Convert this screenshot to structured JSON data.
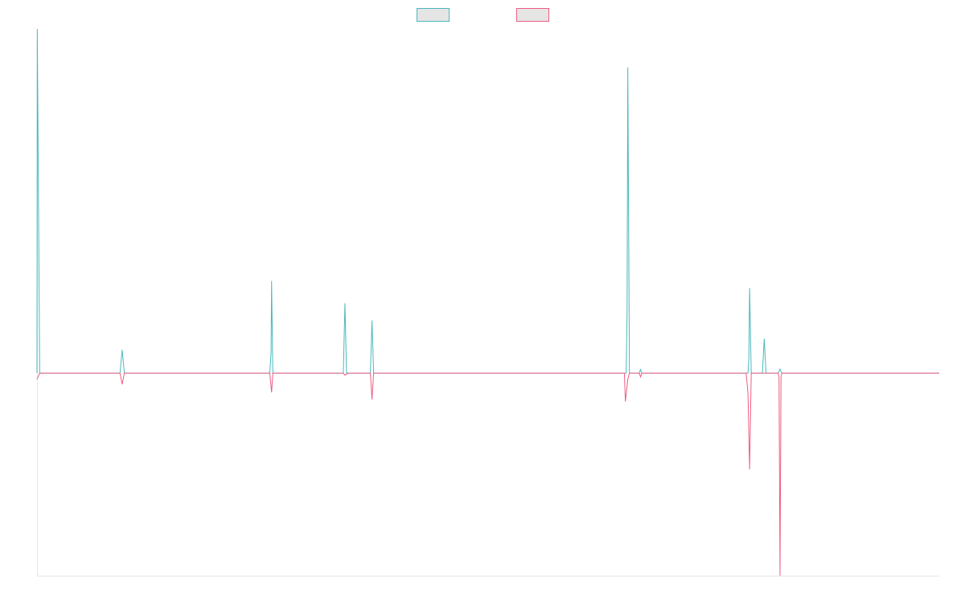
{
  "chart_data": {
    "type": "line",
    "title": "",
    "xlabel": "",
    "ylabel": "",
    "grid": false,
    "legend": {
      "placement": "top-center",
      "entries": [
        {
          "label": "",
          "color": "#4bb8bd",
          "fill": "#e5e5e5"
        },
        {
          "label": "",
          "color": "#ef5d83",
          "fill": "#e5e5e5"
        }
      ]
    },
    "colors": {
      "series_a": "#4bb8bd",
      "series_b": "#ef5d83",
      "axis": "#e6e6e6"
    },
    "xlim": [
      0,
      1
    ],
    "ylim": [
      -1,
      1.7
    ],
    "series": [
      {
        "color": "#4bb8bd",
        "points": [
          [
            0.0,
            0.0
          ],
          [
            0.0003,
            1.7
          ],
          [
            0.003,
            0.0
          ],
          [
            0.092,
            0.0
          ],
          [
            0.0944,
            0.115
          ],
          [
            0.0968,
            0.0
          ],
          [
            0.258,
            0.0
          ],
          [
            0.2594,
            0.1
          ],
          [
            0.26,
            0.455
          ],
          [
            0.2614,
            0.0
          ],
          [
            0.3395,
            0.0
          ],
          [
            0.3413,
            0.345
          ],
          [
            0.3431,
            0.0
          ],
          [
            0.3448,
            0.0
          ],
          [
            0.3695,
            0.0
          ],
          [
            0.3713,
            0.26
          ],
          [
            0.3731,
            0.0
          ],
          [
            0.653,
            0.0
          ],
          [
            0.654,
            0.3
          ],
          [
            0.6548,
            1.51
          ],
          [
            0.6566,
            0.0
          ],
          [
            0.6675,
            0.0
          ],
          [
            0.6689,
            0.018
          ],
          [
            0.6703,
            0.0
          ],
          [
            0.788,
            0.0
          ],
          [
            0.789,
            0.08
          ],
          [
            0.7898,
            0.42
          ],
          [
            0.7916,
            0.0
          ],
          [
            0.804,
            0.0
          ],
          [
            0.806,
            0.17
          ],
          [
            0.808,
            0.0
          ],
          [
            0.8215,
            0.0
          ],
          [
            0.8235,
            0.02
          ],
          [
            0.8255,
            0.0
          ],
          [
            1.0,
            0.0
          ]
        ]
      },
      {
        "color": "#ef5d83",
        "points": [
          [
            0.0,
            -0.03
          ],
          [
            0.003,
            0.0
          ],
          [
            0.092,
            0.0
          ],
          [
            0.0944,
            -0.055
          ],
          [
            0.0968,
            0.0
          ],
          [
            0.258,
            0.0
          ],
          [
            0.26,
            -0.095
          ],
          [
            0.2614,
            0.0
          ],
          [
            0.3395,
            0.0
          ],
          [
            0.3413,
            -0.01
          ],
          [
            0.3448,
            0.0
          ],
          [
            0.3695,
            0.0
          ],
          [
            0.3713,
            -0.13
          ],
          [
            0.3731,
            0.0
          ],
          [
            0.651,
            0.0
          ],
          [
            0.6521,
            -0.14
          ],
          [
            0.6548,
            -0.03
          ],
          [
            0.6566,
            0.0
          ],
          [
            0.6675,
            0.0
          ],
          [
            0.6689,
            -0.018
          ],
          [
            0.6703,
            0.0
          ],
          [
            0.786,
            0.0
          ],
          [
            0.788,
            -0.1
          ],
          [
            0.7898,
            -0.475
          ],
          [
            0.7916,
            0.0
          ],
          [
            0.8215,
            0.0
          ],
          [
            0.8224,
            -0.02
          ],
          [
            0.8235,
            -1.0
          ],
          [
            0.8246,
            -0.02
          ],
          [
            0.8255,
            0.0
          ],
          [
            1.0,
            0.0
          ]
        ]
      }
    ]
  }
}
